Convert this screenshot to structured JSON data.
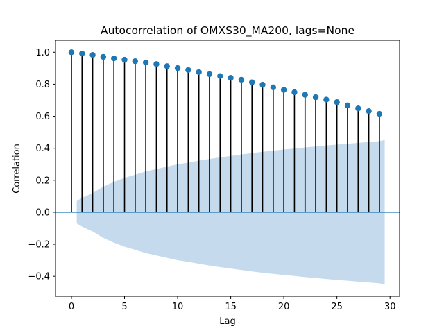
{
  "chart_data": {
    "type": "scatter",
    "subtype": "acf-stem",
    "title": "Autocorrelation of OMXS30_MA200, lags=None",
    "xlabel": "Lag",
    "ylabel": "Correlation",
    "xlim": [
      -1.5,
      30.9
    ],
    "ylim": [
      -0.525,
      1.075
    ],
    "xticks": [
      0,
      5,
      10,
      15,
      20,
      25,
      30
    ],
    "xtick_labels": [
      "0",
      "5",
      "10",
      "15",
      "20",
      "25",
      "30"
    ],
    "yticks": [
      -0.4,
      -0.2,
      0.0,
      0.2,
      0.4,
      0.6,
      0.8,
      1.0
    ],
    "ytick_labels": [
      "−0.4",
      "−0.2",
      "0.0",
      "0.2",
      "0.4",
      "0.6",
      "0.8",
      "1.0"
    ],
    "grid": false,
    "lags": [
      0,
      1,
      2,
      3,
      4,
      5,
      6,
      7,
      8,
      9,
      10,
      11,
      12,
      13,
      14,
      15,
      16,
      17,
      18,
      19,
      20,
      21,
      22,
      23,
      24,
      25,
      26,
      27,
      28,
      29
    ],
    "acf": [
      1.0,
      0.992,
      0.983,
      0.971,
      0.962,
      0.953,
      0.944,
      0.936,
      0.926,
      0.913,
      0.901,
      0.889,
      0.876,
      0.863,
      0.851,
      0.84,
      0.828,
      0.812,
      0.797,
      0.781,
      0.765,
      0.75,
      0.734,
      0.719,
      0.704,
      0.688,
      0.668,
      0.649,
      0.632,
      0.615
    ],
    "confidence_band": {
      "x": [
        0.5,
        1,
        2,
        3,
        4,
        5,
        6,
        7,
        8,
        9,
        10,
        11,
        12,
        13,
        14,
        15,
        16,
        17,
        18,
        19,
        20,
        21,
        22,
        23,
        24,
        25,
        26,
        27,
        28,
        29,
        29.5
      ],
      "upper": [
        0.07,
        0.09,
        0.12,
        0.16,
        0.19,
        0.215,
        0.235,
        0.255,
        0.27,
        0.285,
        0.3,
        0.31,
        0.322,
        0.333,
        0.343,
        0.352,
        0.361,
        0.37,
        0.378,
        0.385,
        0.392,
        0.398,
        0.405,
        0.411,
        0.417,
        0.423,
        0.428,
        0.434,
        0.439,
        0.444,
        0.452
      ]
    },
    "colors": {
      "marker": "#1f77b4",
      "stem": "#000000",
      "zero_line": "#1f77b4",
      "band": "#c5dbed"
    }
  }
}
